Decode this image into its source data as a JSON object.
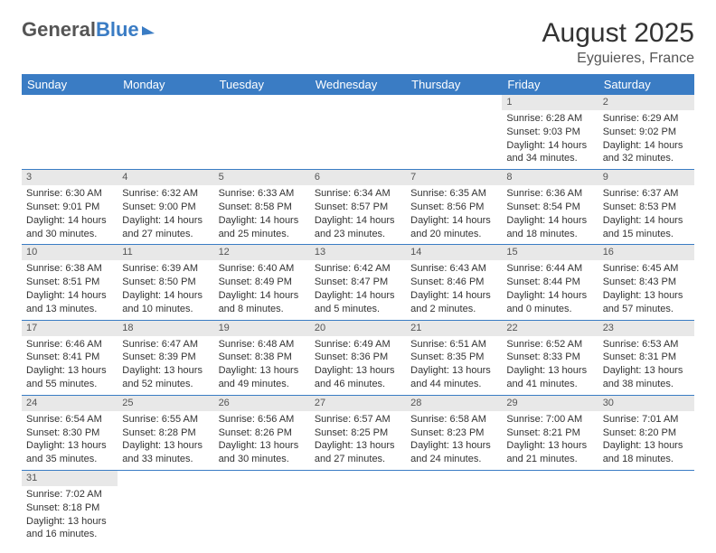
{
  "logo": {
    "text1": "General",
    "text2": "Blue"
  },
  "title": "August 2025",
  "subtitle": "Eyguieres, France",
  "columns": [
    "Sunday",
    "Monday",
    "Tuesday",
    "Wednesday",
    "Thursday",
    "Friday",
    "Saturday"
  ],
  "colors": {
    "header_bg": "#3a7cc4",
    "header_fg": "#ffffff",
    "daynum_bg": "#e8e8e8",
    "border": "#3a7cc4",
    "title_fg": "#333333",
    "subtitle_fg": "#555555"
  },
  "font": {
    "family": "Arial",
    "title_size": 30,
    "subtitle_size": 16,
    "th_size": 13,
    "cell_size": 11
  },
  "weeks": [
    [
      null,
      null,
      null,
      null,
      null,
      {
        "d": "1",
        "sr": "Sunrise: 6:28 AM",
        "ss": "Sunset: 9:03 PM",
        "dl1": "Daylight: 14 hours",
        "dl2": "and 34 minutes."
      },
      {
        "d": "2",
        "sr": "Sunrise: 6:29 AM",
        "ss": "Sunset: 9:02 PM",
        "dl1": "Daylight: 14 hours",
        "dl2": "and 32 minutes."
      }
    ],
    [
      {
        "d": "3",
        "sr": "Sunrise: 6:30 AM",
        "ss": "Sunset: 9:01 PM",
        "dl1": "Daylight: 14 hours",
        "dl2": "and 30 minutes."
      },
      {
        "d": "4",
        "sr": "Sunrise: 6:32 AM",
        "ss": "Sunset: 9:00 PM",
        "dl1": "Daylight: 14 hours",
        "dl2": "and 27 minutes."
      },
      {
        "d": "5",
        "sr": "Sunrise: 6:33 AM",
        "ss": "Sunset: 8:58 PM",
        "dl1": "Daylight: 14 hours",
        "dl2": "and 25 minutes."
      },
      {
        "d": "6",
        "sr": "Sunrise: 6:34 AM",
        "ss": "Sunset: 8:57 PM",
        "dl1": "Daylight: 14 hours",
        "dl2": "and 23 minutes."
      },
      {
        "d": "7",
        "sr": "Sunrise: 6:35 AM",
        "ss": "Sunset: 8:56 PM",
        "dl1": "Daylight: 14 hours",
        "dl2": "and 20 minutes."
      },
      {
        "d": "8",
        "sr": "Sunrise: 6:36 AM",
        "ss": "Sunset: 8:54 PM",
        "dl1": "Daylight: 14 hours",
        "dl2": "and 18 minutes."
      },
      {
        "d": "9",
        "sr": "Sunrise: 6:37 AM",
        "ss": "Sunset: 8:53 PM",
        "dl1": "Daylight: 14 hours",
        "dl2": "and 15 minutes."
      }
    ],
    [
      {
        "d": "10",
        "sr": "Sunrise: 6:38 AM",
        "ss": "Sunset: 8:51 PM",
        "dl1": "Daylight: 14 hours",
        "dl2": "and 13 minutes."
      },
      {
        "d": "11",
        "sr": "Sunrise: 6:39 AM",
        "ss": "Sunset: 8:50 PM",
        "dl1": "Daylight: 14 hours",
        "dl2": "and 10 minutes."
      },
      {
        "d": "12",
        "sr": "Sunrise: 6:40 AM",
        "ss": "Sunset: 8:49 PM",
        "dl1": "Daylight: 14 hours",
        "dl2": "and 8 minutes."
      },
      {
        "d": "13",
        "sr": "Sunrise: 6:42 AM",
        "ss": "Sunset: 8:47 PM",
        "dl1": "Daylight: 14 hours",
        "dl2": "and 5 minutes."
      },
      {
        "d": "14",
        "sr": "Sunrise: 6:43 AM",
        "ss": "Sunset: 8:46 PM",
        "dl1": "Daylight: 14 hours",
        "dl2": "and 2 minutes."
      },
      {
        "d": "15",
        "sr": "Sunrise: 6:44 AM",
        "ss": "Sunset: 8:44 PM",
        "dl1": "Daylight: 14 hours",
        "dl2": "and 0 minutes."
      },
      {
        "d": "16",
        "sr": "Sunrise: 6:45 AM",
        "ss": "Sunset: 8:43 PM",
        "dl1": "Daylight: 13 hours",
        "dl2": "and 57 minutes."
      }
    ],
    [
      {
        "d": "17",
        "sr": "Sunrise: 6:46 AM",
        "ss": "Sunset: 8:41 PM",
        "dl1": "Daylight: 13 hours",
        "dl2": "and 55 minutes."
      },
      {
        "d": "18",
        "sr": "Sunrise: 6:47 AM",
        "ss": "Sunset: 8:39 PM",
        "dl1": "Daylight: 13 hours",
        "dl2": "and 52 minutes."
      },
      {
        "d": "19",
        "sr": "Sunrise: 6:48 AM",
        "ss": "Sunset: 8:38 PM",
        "dl1": "Daylight: 13 hours",
        "dl2": "and 49 minutes."
      },
      {
        "d": "20",
        "sr": "Sunrise: 6:49 AM",
        "ss": "Sunset: 8:36 PM",
        "dl1": "Daylight: 13 hours",
        "dl2": "and 46 minutes."
      },
      {
        "d": "21",
        "sr": "Sunrise: 6:51 AM",
        "ss": "Sunset: 8:35 PM",
        "dl1": "Daylight: 13 hours",
        "dl2": "and 44 minutes."
      },
      {
        "d": "22",
        "sr": "Sunrise: 6:52 AM",
        "ss": "Sunset: 8:33 PM",
        "dl1": "Daylight: 13 hours",
        "dl2": "and 41 minutes."
      },
      {
        "d": "23",
        "sr": "Sunrise: 6:53 AM",
        "ss": "Sunset: 8:31 PM",
        "dl1": "Daylight: 13 hours",
        "dl2": "and 38 minutes."
      }
    ],
    [
      {
        "d": "24",
        "sr": "Sunrise: 6:54 AM",
        "ss": "Sunset: 8:30 PM",
        "dl1": "Daylight: 13 hours",
        "dl2": "and 35 minutes."
      },
      {
        "d": "25",
        "sr": "Sunrise: 6:55 AM",
        "ss": "Sunset: 8:28 PM",
        "dl1": "Daylight: 13 hours",
        "dl2": "and 33 minutes."
      },
      {
        "d": "26",
        "sr": "Sunrise: 6:56 AM",
        "ss": "Sunset: 8:26 PM",
        "dl1": "Daylight: 13 hours",
        "dl2": "and 30 minutes."
      },
      {
        "d": "27",
        "sr": "Sunrise: 6:57 AM",
        "ss": "Sunset: 8:25 PM",
        "dl1": "Daylight: 13 hours",
        "dl2": "and 27 minutes."
      },
      {
        "d": "28",
        "sr": "Sunrise: 6:58 AM",
        "ss": "Sunset: 8:23 PM",
        "dl1": "Daylight: 13 hours",
        "dl2": "and 24 minutes."
      },
      {
        "d": "29",
        "sr": "Sunrise: 7:00 AM",
        "ss": "Sunset: 8:21 PM",
        "dl1": "Daylight: 13 hours",
        "dl2": "and 21 minutes."
      },
      {
        "d": "30",
        "sr": "Sunrise: 7:01 AM",
        "ss": "Sunset: 8:20 PM",
        "dl1": "Daylight: 13 hours",
        "dl2": "and 18 minutes."
      }
    ],
    [
      {
        "d": "31",
        "sr": "Sunrise: 7:02 AM",
        "ss": "Sunset: 8:18 PM",
        "dl1": "Daylight: 13 hours",
        "dl2": "and 16 minutes."
      },
      null,
      null,
      null,
      null,
      null,
      null
    ]
  ]
}
